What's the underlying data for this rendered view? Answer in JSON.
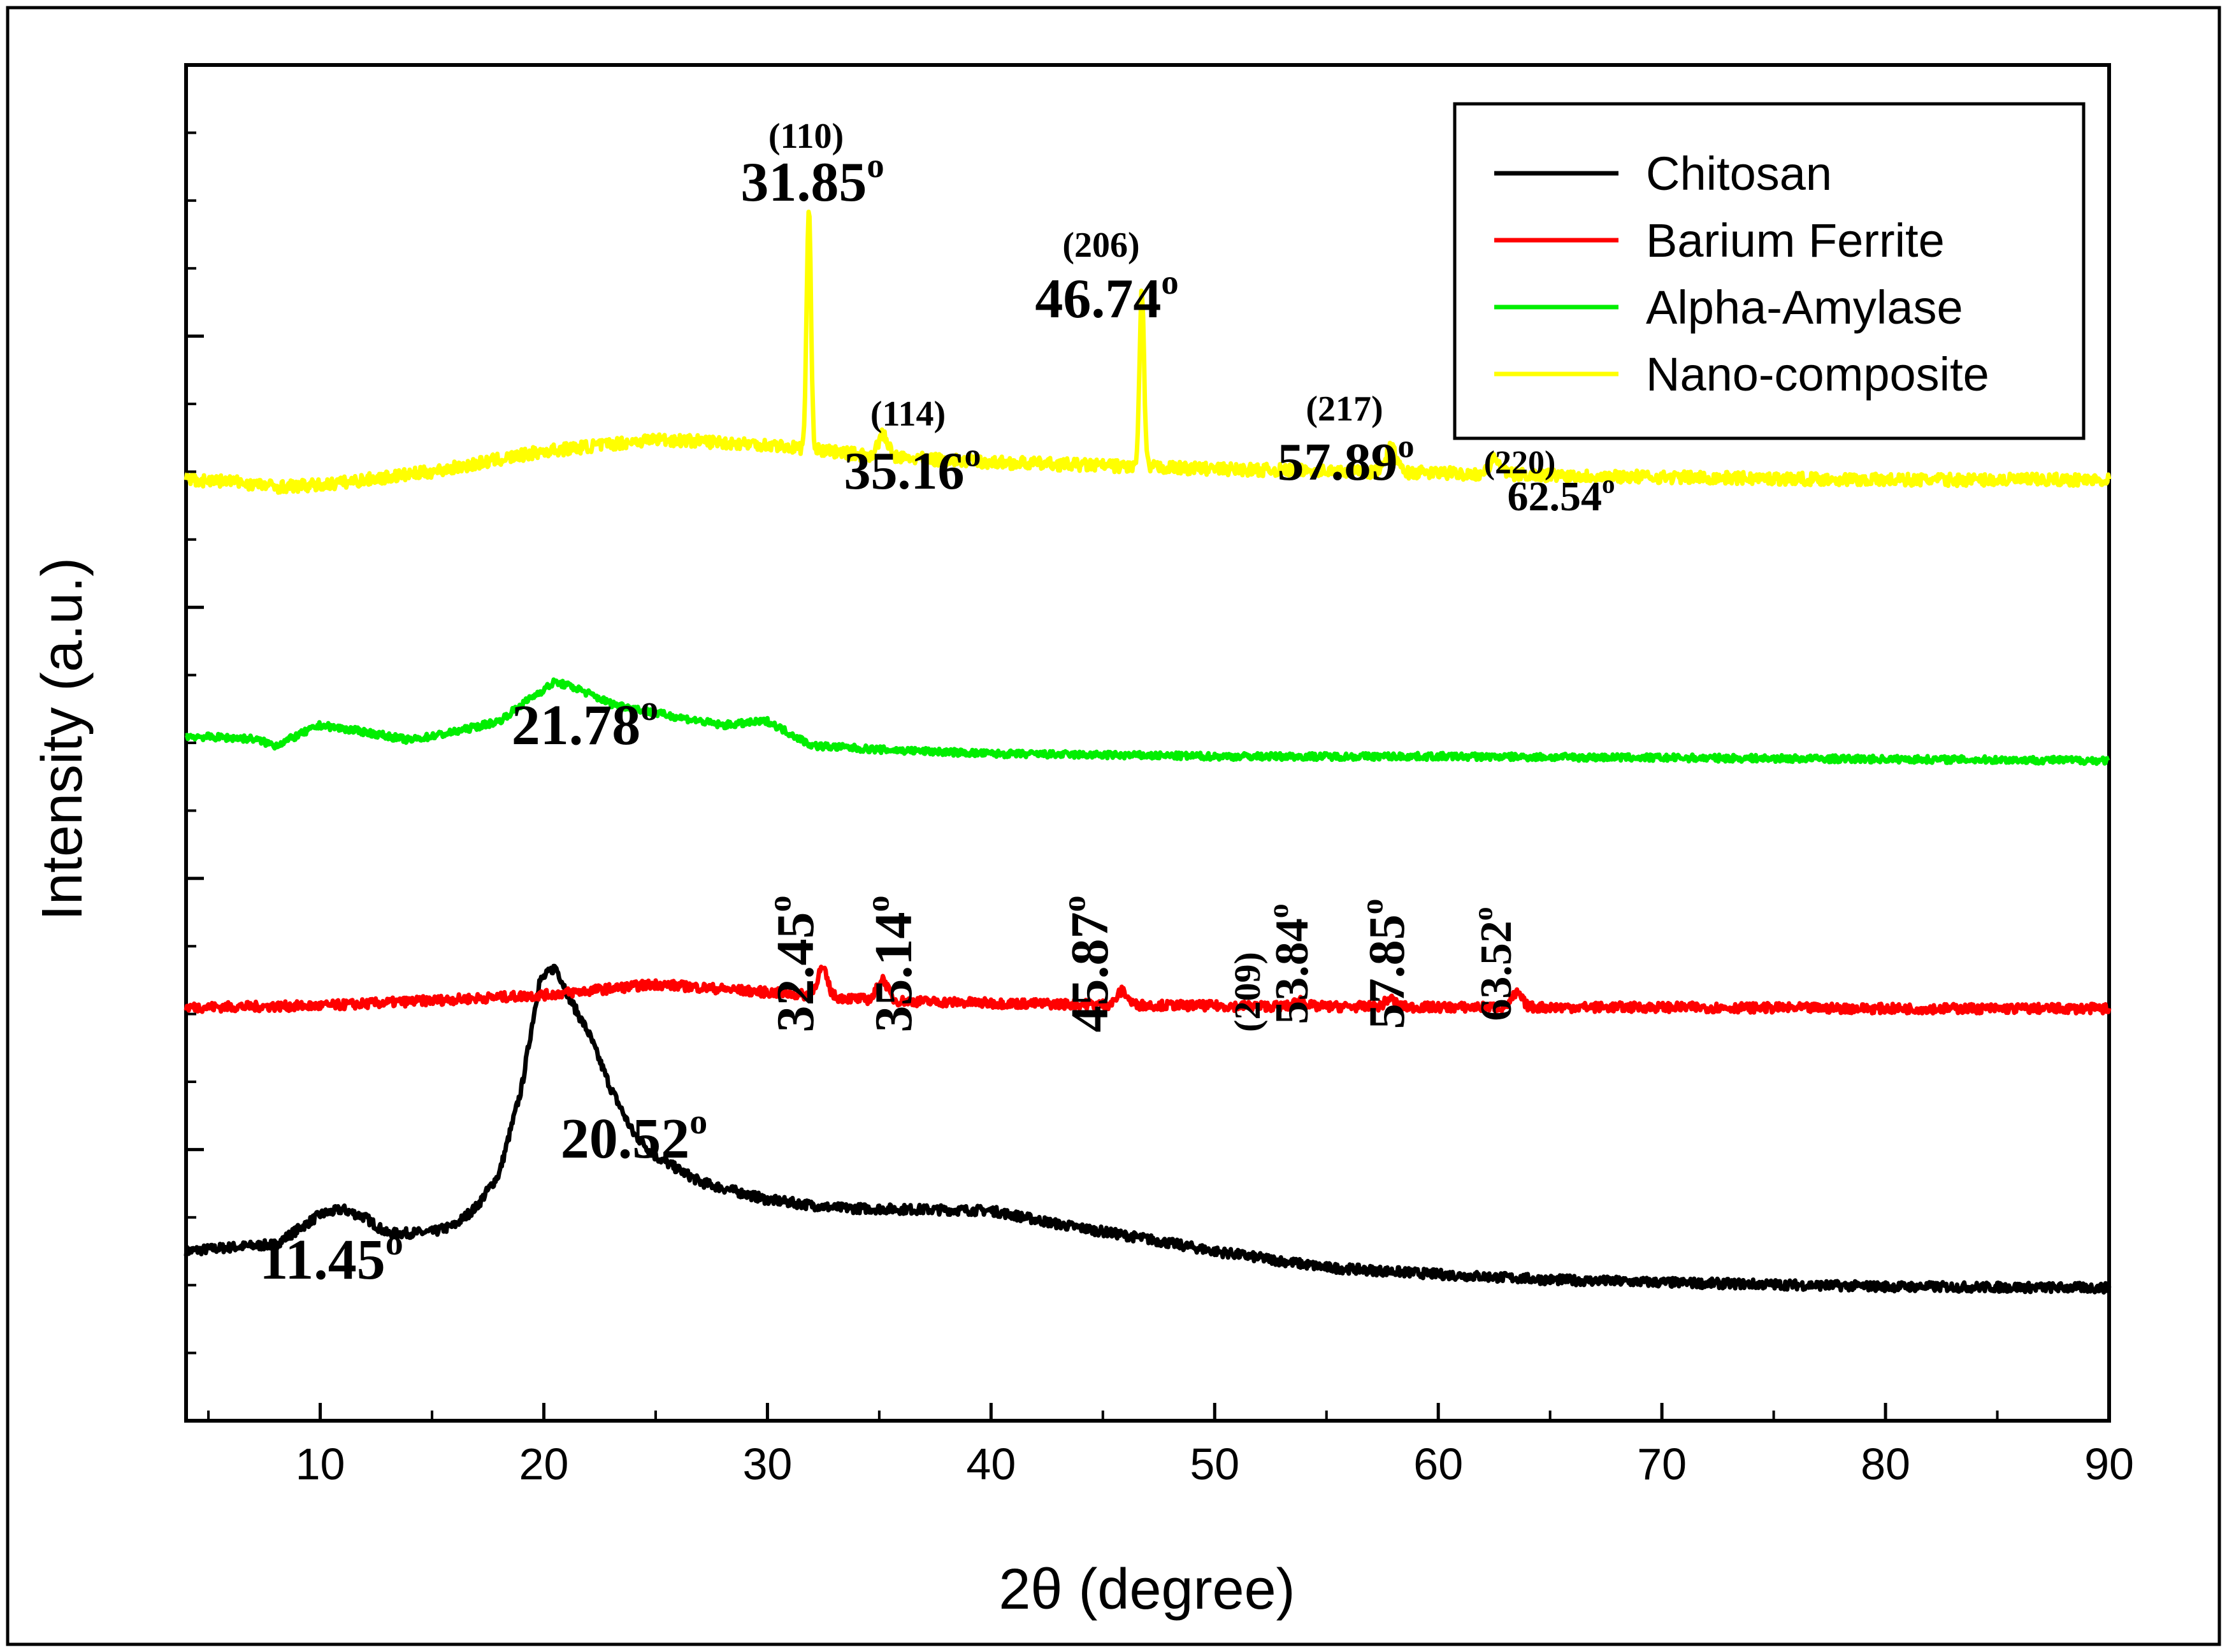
{
  "chart_data": {
    "type": "line",
    "xlabel": "2θ (degree)",
    "ylabel": "Intensity (a.u.)",
    "xlim": [
      4,
      90
    ],
    "ylim": [
      0,
      100
    ],
    "xticks": [
      10,
      20,
      30,
      40,
      50,
      60,
      70,
      80,
      90
    ],
    "yticks_labeled": false,
    "grid": false,
    "legend_position": "top-right",
    "series": [
      {
        "name": "Chitosan",
        "color": "#000000",
        "baseline_points": [
          [
            4,
            12.5
          ],
          [
            6,
            12.8
          ],
          [
            8,
            13.0
          ],
          [
            10,
            15.2
          ],
          [
            11,
            15.6
          ],
          [
            12,
            15.0
          ],
          [
            13,
            13.8
          ],
          [
            15,
            13.9
          ],
          [
            16,
            14.4
          ],
          [
            17,
            15.8
          ],
          [
            18,
            18.2
          ],
          [
            19,
            24.5
          ],
          [
            19.8,
            32.4
          ],
          [
            20.52,
            33.5
          ],
          [
            21.2,
            31.0
          ],
          [
            22,
            28.6
          ],
          [
            23,
            24.5
          ],
          [
            24,
            21.2
          ],
          [
            25,
            19.5
          ],
          [
            27,
            17.6
          ],
          [
            30,
            16.3
          ],
          [
            33,
            15.7
          ],
          [
            36,
            15.6
          ],
          [
            40,
            15.5
          ],
          [
            43,
            14.5
          ],
          [
            47,
            13.4
          ],
          [
            50,
            12.5
          ],
          [
            55,
            11.3
          ],
          [
            60,
            10.8
          ],
          [
            65,
            10.4
          ],
          [
            70,
            10.2
          ],
          [
            80,
            9.9
          ],
          [
            90,
            9.8
          ]
        ],
        "noise": 0.35,
        "peaks": [
          {
            "two_theta": 11.45,
            "label": "11.45",
            "hkl": ""
          },
          {
            "two_theta": 20.52,
            "label": "20.52",
            "hkl": ""
          }
        ]
      },
      {
        "name": "Barium Ferrite",
        "color": "#ff0000",
        "baseline_points": [
          [
            4,
            30.5
          ],
          [
            10,
            30.6
          ],
          [
            20,
            31.4
          ],
          [
            25,
            32.2
          ],
          [
            30,
            31.6
          ],
          [
            35,
            31.0
          ],
          [
            40,
            30.8
          ],
          [
            50,
            30.6
          ],
          [
            60,
            30.5
          ],
          [
            70,
            30.5
          ],
          [
            80,
            30.4
          ],
          [
            90,
            30.4
          ]
        ],
        "noise": 0.35,
        "peaks": [
          {
            "two_theta": 32.45,
            "label": "32.45",
            "hkl": "",
            "height": 2.0
          },
          {
            "two_theta": 35.14,
            "label": "35.14",
            "hkl": "",
            "height": 1.6
          },
          {
            "two_theta": 45.87,
            "label": "45.87",
            "hkl": "",
            "height": 1.0
          },
          {
            "two_theta": 53.84,
            "label": "53.84",
            "hkl": "(209)",
            "height": 0.5
          },
          {
            "two_theta": 57.85,
            "label": "57.85",
            "hkl": "",
            "height": 0.6
          },
          {
            "two_theta": 63.52,
            "label": "63.52",
            "hkl": "",
            "height": 1.0
          }
        ]
      },
      {
        "name": "Alpha-Amylase",
        "color": "#00ee00",
        "baseline_points": [
          [
            4,
            50.5
          ],
          [
            7,
            50.3
          ],
          [
            8,
            49.8
          ],
          [
            10,
            51.3
          ],
          [
            12,
            50.8
          ],
          [
            14,
            50.2
          ],
          [
            16,
            50.8
          ],
          [
            18,
            51.6
          ],
          [
            19.5,
            53.4
          ],
          [
            20.5,
            54.5
          ],
          [
            21.5,
            54.0
          ],
          [
            23,
            52.9
          ],
          [
            25,
            52.2
          ],
          [
            28,
            51.3
          ],
          [
            30,
            51.6
          ],
          [
            32,
            49.8
          ],
          [
            35,
            49.5
          ],
          [
            40,
            49.2
          ],
          [
            50,
            49.0
          ],
          [
            60,
            49.0
          ],
          [
            70,
            48.9
          ],
          [
            80,
            48.8
          ],
          [
            90,
            48.7
          ]
        ],
        "noise": 0.25,
        "peaks": [
          {
            "two_theta": 21.78,
            "label": "21.78",
            "hkl": ""
          }
        ]
      },
      {
        "name": "Nano-composite",
        "color": "#ffff00",
        "baseline_points": [
          [
            4,
            69.4
          ],
          [
            6,
            69.3
          ],
          [
            8,
            68.9
          ],
          [
            10,
            69.0
          ],
          [
            15,
            70.0
          ],
          [
            20,
            71.5
          ],
          [
            25,
            72.4
          ],
          [
            30,
            72.0
          ],
          [
            35,
            71.1
          ],
          [
            40,
            70.7
          ],
          [
            50,
            70.2
          ],
          [
            60,
            69.9
          ],
          [
            70,
            69.6
          ],
          [
            80,
            69.4
          ],
          [
            90,
            69.4
          ]
        ],
        "noise": 0.45,
        "peaks": [
          {
            "two_theta": 31.85,
            "label": "31.85",
            "hkl": "(110)",
            "height": 17.5
          },
          {
            "two_theta": 35.16,
            "label": "35.16",
            "hkl": "(114)",
            "height": 1.6
          },
          {
            "two_theta": 46.74,
            "label": "46.74",
            "hkl": "(206)",
            "height": 12.9
          },
          {
            "two_theta": 57.89,
            "label": "57.89",
            "hkl": "(217)",
            "height": 1.8
          },
          {
            "two_theta": 62.54,
            "label": "62.54",
            "hkl": "(220)",
            "height": 1.1
          }
        ]
      }
    ],
    "degree_symbol": "o"
  }
}
